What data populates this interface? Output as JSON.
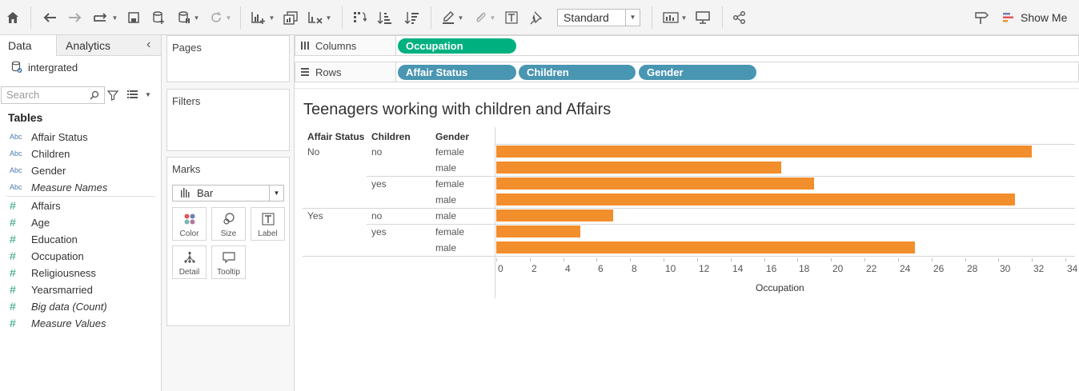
{
  "toolbar": {
    "mark_fit": "Standard",
    "show_me": "Show Me"
  },
  "data_pane": {
    "tabs": [
      "Data",
      "Analytics"
    ],
    "datasource": "intergrated",
    "search_placeholder": "Search",
    "tables_heading": "Tables",
    "dimensions": [
      "Affair Status",
      "Children",
      "Gender",
      "Measure Names"
    ],
    "measures": [
      "Affairs",
      "Age",
      "Education",
      "Occupation",
      "Religiousness",
      "Yearsmarried",
      "Big data (Count)",
      "Measure Values"
    ]
  },
  "cards": {
    "pages": "Pages",
    "filters": "Filters",
    "marks": "Marks",
    "mark_type": "Bar",
    "mark_buttons": [
      "Color",
      "Size",
      "Label",
      "Detail",
      "Tooltip"
    ]
  },
  "shelves": {
    "columns_label": "Columns",
    "rows_label": "Rows",
    "columns_pills": [
      "Occupation"
    ],
    "rows_pills": [
      "Affair Status",
      "Children",
      "Gender"
    ]
  },
  "colors": {
    "dimension_pill": "#4996b2",
    "measure_pill": "#00b180",
    "bar": "#f28e2b"
  },
  "chart_data": {
    "type": "bar",
    "title": "Teenagers working with children and Affairs",
    "row_headers": [
      "Affair Status",
      "Children",
      "Gender"
    ],
    "rows": [
      {
        "affair_status": "No",
        "children": "no",
        "gender": "female",
        "value": 32
      },
      {
        "affair_status": "",
        "children": "",
        "gender": "male",
        "value": 17
      },
      {
        "affair_status": "",
        "children": "yes",
        "gender": "female",
        "value": 19
      },
      {
        "affair_status": "",
        "children": "",
        "gender": "male",
        "value": 31
      },
      {
        "affair_status": "Yes",
        "children": "no",
        "gender": "male",
        "value": 7
      },
      {
        "affair_status": "",
        "children": "yes",
        "gender": "female",
        "value": 5
      },
      {
        "affair_status": "",
        "children": "",
        "gender": "male",
        "value": 25
      }
    ],
    "xlabel": "Occupation",
    "xlim": [
      0,
      34
    ],
    "xticks": [
      "0",
      "2",
      "4",
      "6",
      "8",
      "10",
      "12",
      "14",
      "16",
      "18",
      "20",
      "22",
      "24",
      "26",
      "28",
      "30",
      "32",
      "34"
    ],
    "orientation": "horizontal"
  }
}
